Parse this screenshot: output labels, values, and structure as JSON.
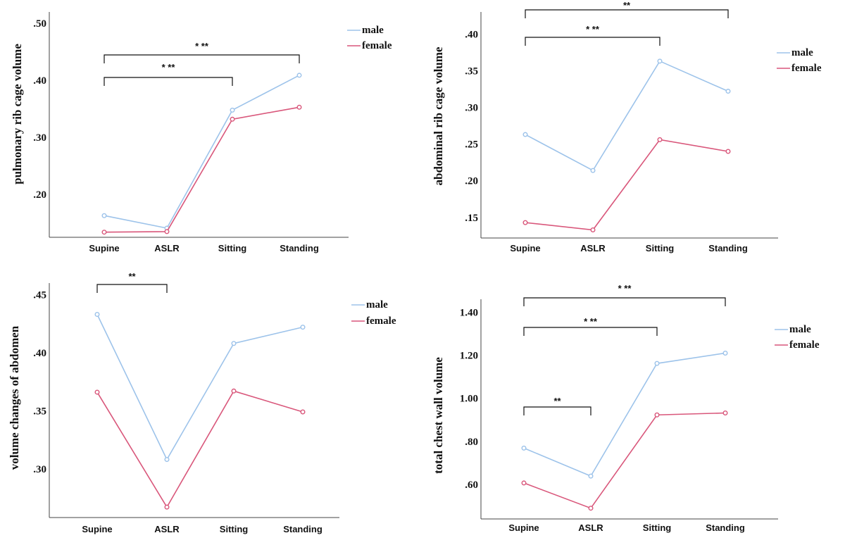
{
  "colors": {
    "male": "#9dc3ea",
    "female": "#d9577b"
  },
  "chart_data": [
    {
      "type": "line",
      "ylabel": "pulmonary rib cage volume",
      "categories": [
        "Supine",
        "ASLR",
        "Sitting",
        "Standing"
      ],
      "yticks": [
        0.2,
        0.3,
        0.4,
        0.5
      ],
      "ytick_labels": [
        ".20",
        ".30",
        ".40",
        ".50"
      ],
      "ylim": [
        0.125,
        0.52
      ],
      "series": [
        {
          "name": "male",
          "values": [
            0.163,
            0.141,
            0.348,
            0.409
          ]
        },
        {
          "name": "female",
          "values": [
            0.134,
            0.135,
            0.332,
            0.353
          ]
        }
      ],
      "brackets": [
        {
          "from": 0,
          "to": 2,
          "label": "* **"
        },
        {
          "from": 0,
          "to": 3,
          "label": "* **"
        }
      ]
    },
    {
      "type": "line",
      "ylabel": "abdominal rib cage volume",
      "categories": [
        "Supine",
        "ASLR",
        "Sitting",
        "Standing"
      ],
      "yticks": [
        0.15,
        0.2,
        0.25,
        0.3,
        0.35,
        0.4
      ],
      "ytick_labels": [
        ".15",
        ".20",
        ".25",
        ".30",
        ".35",
        ".40"
      ],
      "ylim": [
        0.122,
        0.43
      ],
      "series": [
        {
          "name": "male",
          "values": [
            0.263,
            0.214,
            0.363,
            0.322
          ]
        },
        {
          "name": "female",
          "values": [
            0.143,
            0.133,
            0.256,
            0.24
          ]
        }
      ],
      "brackets": [
        {
          "from": 0,
          "to": 2,
          "label": "* **"
        },
        {
          "from": 0,
          "to": 3,
          "label": "**"
        }
      ]
    },
    {
      "type": "line",
      "ylabel": "volume changes of abdomen",
      "categories": [
        "Supine",
        "ASLR",
        "Sitting",
        "Standing"
      ],
      "yticks": [
        0.3,
        0.35,
        0.4,
        0.45
      ],
      "ytick_labels": [
        ".30",
        ".35",
        ".40",
        ".45"
      ],
      "ylim": [
        0.258,
        0.46
      ],
      "series": [
        {
          "name": "male",
          "values": [
            0.433,
            0.308,
            0.408,
            0.422
          ]
        },
        {
          "name": "female",
          "values": [
            0.366,
            0.267,
            0.367,
            0.349
          ]
        }
      ],
      "brackets": [
        {
          "from": 0,
          "to": 1,
          "label": "**"
        }
      ]
    },
    {
      "type": "line",
      "ylabel": "total chest wall volume",
      "categories": [
        "Supine",
        "ASLR",
        "Sitting",
        "Standing"
      ],
      "yticks": [
        0.6,
        0.8,
        1.0,
        1.2,
        1.4
      ],
      "ytick_labels": [
        ".60",
        ".80",
        "1.00",
        "1.20",
        "1.40"
      ],
      "ylim": [
        0.44,
        1.46
      ],
      "series": [
        {
          "name": "male",
          "values": [
            0.769,
            0.639,
            1.162,
            1.21
          ]
        },
        {
          "name": "female",
          "values": [
            0.607,
            0.49,
            0.923,
            0.932
          ]
        }
      ],
      "brackets": [
        {
          "from": 0,
          "to": 1,
          "label": "**"
        },
        {
          "from": 0,
          "to": 2,
          "label": "* **"
        },
        {
          "from": 0,
          "to": 3,
          "label": "* **"
        }
      ]
    }
  ]
}
